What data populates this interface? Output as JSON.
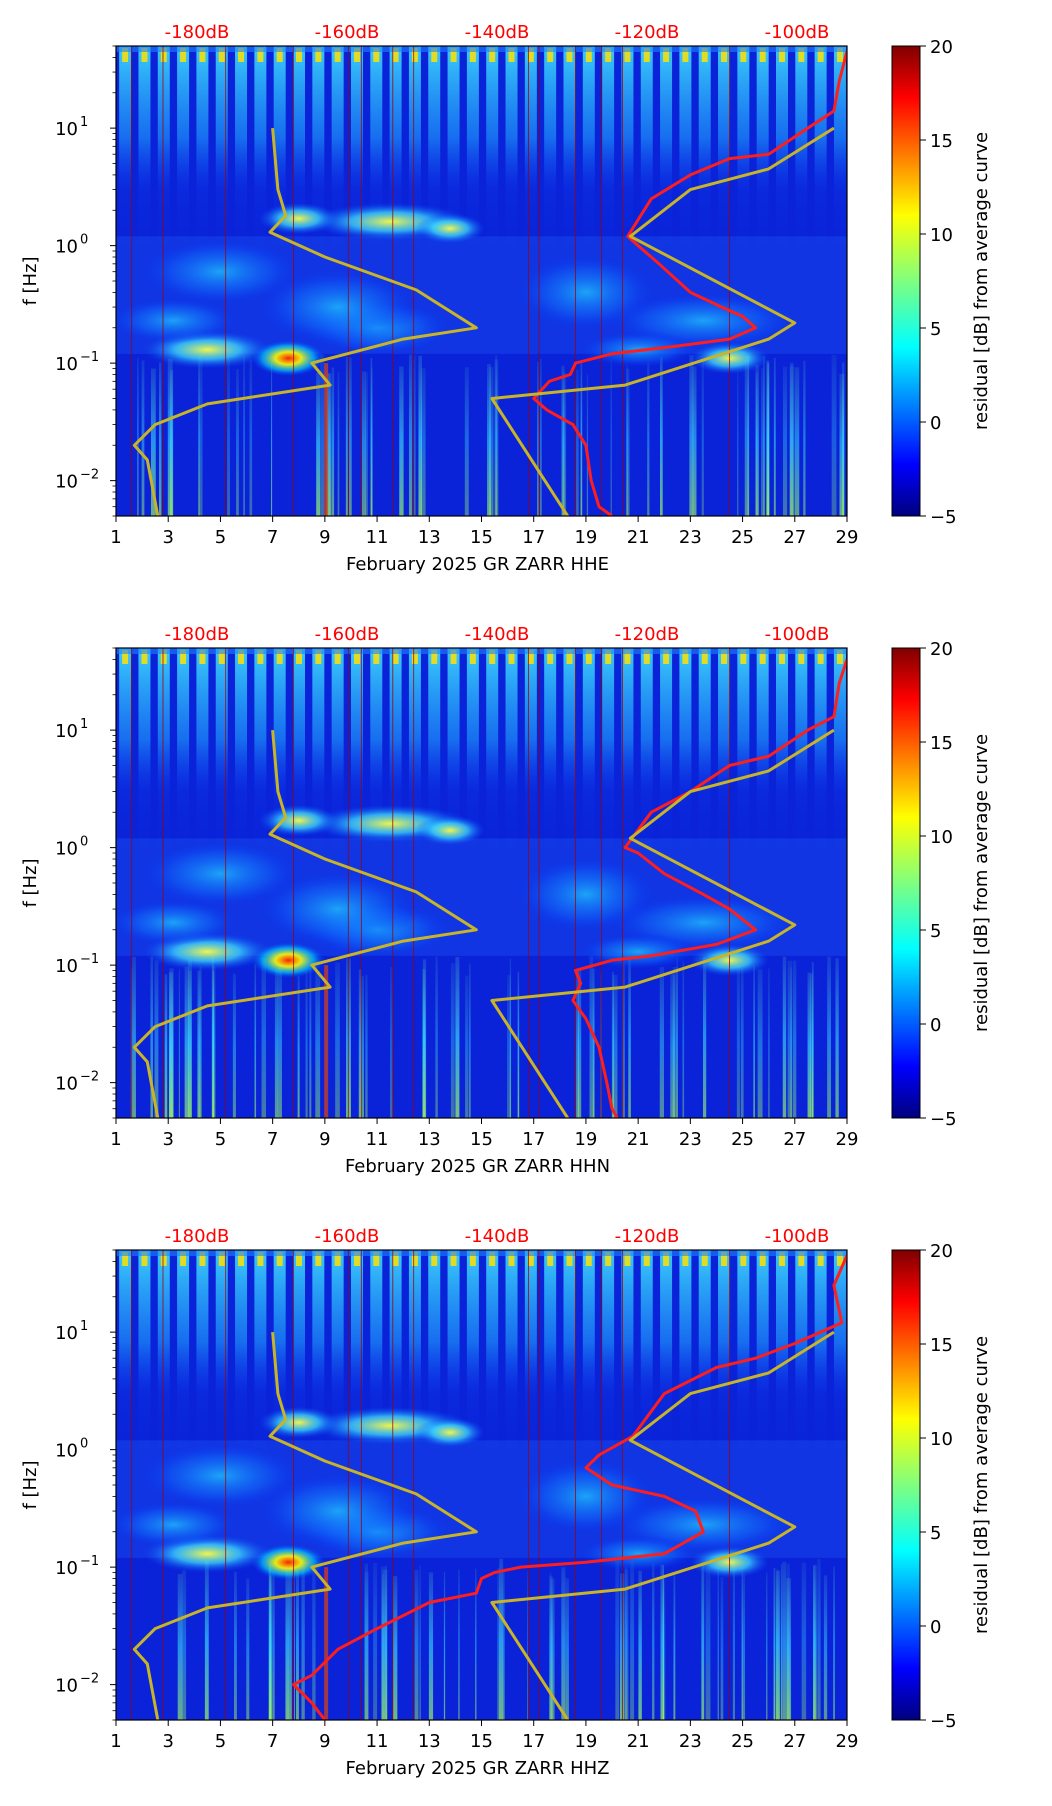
{
  "chart_data": [
    {
      "type": "heatmap",
      "title": "February 2025 GR ZARR  HHE",
      "xlabel": "February 2025 GR ZARR  HHE",
      "ylabel": "f [Hz]",
      "yscale": "log",
      "xlim": [
        1,
        29
      ],
      "ylim": [
        0.005,
        50
      ],
      "x_ticks": [
        "1",
        "3",
        "5",
        "7",
        "9",
        "11",
        "13",
        "15",
        "17",
        "19",
        "21",
        "23",
        "25",
        "27",
        "29"
      ],
      "y_ticks": [
        {
          "value": 0.01,
          "base": "10",
          "exp": "−2"
        },
        {
          "value": 0.1,
          "base": "10",
          "exp": "−1"
        },
        {
          "value": 1,
          "base": "10",
          "exp": "0"
        },
        {
          "value": 10,
          "base": "10",
          "exp": "1"
        }
      ],
      "top_labels": [
        "-180dB",
        "-160dB",
        "-140dB",
        "-120dB",
        "-100dB"
      ],
      "colorbar": {
        "label": "residual [dB] from average curve",
        "min": -5,
        "max": 20,
        "ticks": [
          "−5",
          "0",
          "5",
          "10",
          "15",
          "20"
        ]
      },
      "series": [
        {
          "name": "average PSD curve",
          "color": "#ff1e1e",
          "points": [
            [
              29,
              45
            ],
            [
              28.7,
              25
            ],
            [
              28.5,
              14
            ],
            [
              27.5,
              10
            ],
            [
              26,
              6
            ],
            [
              24.5,
              5.5
            ],
            [
              23,
              4
            ],
            [
              21.5,
              2.5
            ],
            [
              20.6,
              1.2
            ],
            [
              21,
              1.0
            ],
            [
              21.8,
              0.7
            ],
            [
              23,
              0.4
            ],
            [
              24.2,
              0.3
            ],
            [
              25,
              0.25
            ],
            [
              25.5,
              0.2
            ],
            [
              24.5,
              0.16
            ],
            [
              22.5,
              0.14
            ],
            [
              20,
              0.12
            ],
            [
              18.6,
              0.1
            ],
            [
              18.4,
              0.08
            ],
            [
              17.6,
              0.07
            ],
            [
              17,
              0.05
            ],
            [
              17.5,
              0.04
            ],
            [
              18.5,
              0.03
            ],
            [
              19,
              0.02
            ],
            [
              19.2,
              0.01
            ],
            [
              19.5,
              0.006
            ],
            [
              20,
              0.005
            ]
          ]
        },
        {
          "name": "noise model curve",
          "color": "#c8b428",
          "points": [
            [
              7,
              10
            ],
            [
              7.2,
              3
            ],
            [
              7.5,
              1.8
            ],
            [
              6.9,
              1.3
            ],
            [
              9,
              0.8
            ],
            [
              12.5,
              0.42
            ],
            [
              14.8,
              0.2
            ],
            [
              12,
              0.16
            ],
            [
              8.5,
              0.1
            ],
            [
              9.2,
              0.065
            ],
            [
              4.5,
              0.045
            ],
            [
              2.5,
              0.03
            ],
            [
              1.7,
              0.02
            ],
            [
              2.2,
              0.015
            ],
            [
              2.6,
              0.005
            ]
          ]
        },
        {
          "name": "noise model curve",
          "color": "#c8b428",
          "points": [
            [
              18.3,
              0.005
            ],
            [
              15.4,
              0.05
            ],
            [
              20.5,
              0.065
            ],
            [
              26,
              0.16
            ],
            [
              27,
              0.22
            ],
            [
              20.7,
              1.2
            ],
            [
              23,
              3
            ],
            [
              26,
              4.5
            ],
            [
              28.5,
              10
            ]
          ]
        }
      ]
    },
    {
      "type": "heatmap",
      "title": "February 2025 GR ZARR  HHN",
      "xlabel": "February 2025 GR ZARR  HHN",
      "ylabel": "f [Hz]",
      "yscale": "log",
      "xlim": [
        1,
        29
      ],
      "ylim": [
        0.005,
        50
      ],
      "x_ticks": [
        "1",
        "3",
        "5",
        "7",
        "9",
        "11",
        "13",
        "15",
        "17",
        "19",
        "21",
        "23",
        "25",
        "27",
        "29"
      ],
      "y_ticks": [
        {
          "value": 0.01,
          "base": "10",
          "exp": "−2"
        },
        {
          "value": 0.1,
          "base": "10",
          "exp": "−1"
        },
        {
          "value": 1,
          "base": "10",
          "exp": "0"
        },
        {
          "value": 10,
          "base": "10",
          "exp": "1"
        }
      ],
      "top_labels": [
        "-180dB",
        "-160dB",
        "-140dB",
        "-120dB",
        "-100dB"
      ],
      "colorbar": {
        "label": "residual [dB] from average curve",
        "min": -5,
        "max": 20,
        "ticks": [
          "−5",
          "0",
          "5",
          "10",
          "15",
          "20"
        ]
      },
      "series": [
        {
          "name": "average PSD curve",
          "color": "#ff1e1e",
          "points": [
            [
              29,
              40
            ],
            [
              28.7,
              25
            ],
            [
              28.5,
              13
            ],
            [
              27.5,
              10
            ],
            [
              26,
              6
            ],
            [
              24.5,
              5
            ],
            [
              23,
              3
            ],
            [
              21.5,
              2
            ],
            [
              20.5,
              1.0
            ],
            [
              21,
              0.9
            ],
            [
              22,
              0.6
            ],
            [
              23.5,
              0.4
            ],
            [
              24.5,
              0.3
            ],
            [
              25.5,
              0.2
            ],
            [
              24,
              0.15
            ],
            [
              21.5,
              0.12
            ],
            [
              20,
              0.11
            ],
            [
              18.6,
              0.09
            ],
            [
              18.8,
              0.07
            ],
            [
              18.5,
              0.05
            ],
            [
              19,
              0.035
            ],
            [
              19.5,
              0.02
            ],
            [
              19.8,
              0.01
            ],
            [
              20,
              0.006
            ],
            [
              20.2,
              0.005
            ]
          ]
        },
        {
          "name": "noise model curve",
          "color": "#c8b428",
          "points": [
            [
              7,
              10
            ],
            [
              7.2,
              3
            ],
            [
              7.5,
              1.8
            ],
            [
              6.9,
              1.3
            ],
            [
              9,
              0.8
            ],
            [
              12.5,
              0.42
            ],
            [
              14.8,
              0.2
            ],
            [
              12,
              0.16
            ],
            [
              8.5,
              0.1
            ],
            [
              9.2,
              0.065
            ],
            [
              4.5,
              0.045
            ],
            [
              2.5,
              0.03
            ],
            [
              1.7,
              0.02
            ],
            [
              2.2,
              0.015
            ],
            [
              2.6,
              0.005
            ]
          ]
        },
        {
          "name": "noise model curve",
          "color": "#c8b428",
          "points": [
            [
              18.3,
              0.005
            ],
            [
              15.4,
              0.05
            ],
            [
              20.5,
              0.065
            ],
            [
              26,
              0.16
            ],
            [
              27,
              0.22
            ],
            [
              20.7,
              1.2
            ],
            [
              23,
              3
            ],
            [
              26,
              4.5
            ],
            [
              28.5,
              10
            ]
          ]
        }
      ]
    },
    {
      "type": "heatmap",
      "title": "February 2025 GR ZARR  HHZ",
      "xlabel": "February 2025 GR ZARR  HHZ",
      "ylabel": "f [Hz]",
      "yscale": "log",
      "xlim": [
        1,
        29
      ],
      "ylim": [
        0.005,
        50
      ],
      "x_ticks": [
        "1",
        "3",
        "5",
        "7",
        "9",
        "11",
        "13",
        "15",
        "17",
        "19",
        "21",
        "23",
        "25",
        "27",
        "29"
      ],
      "y_ticks": [
        {
          "value": 0.01,
          "base": "10",
          "exp": "−2"
        },
        {
          "value": 0.1,
          "base": "10",
          "exp": "−1"
        },
        {
          "value": 1,
          "base": "10",
          "exp": "0"
        },
        {
          "value": 10,
          "base": "10",
          "exp": "1"
        }
      ],
      "top_labels": [
        "-180dB",
        "-160dB",
        "-140dB",
        "-120dB",
        "-100dB"
      ],
      "colorbar": {
        "label": "residual [dB] from average curve",
        "min": -5,
        "max": 20,
        "ticks": [
          "−5",
          "0",
          "5",
          "10",
          "15",
          "20"
        ]
      },
      "series": [
        {
          "name": "average PSD curve",
          "color": "#ff1e1e",
          "points": [
            [
              29,
              45
            ],
            [
              28.5,
              25
            ],
            [
              28.8,
              12
            ],
            [
              27,
              8
            ],
            [
              25.5,
              6
            ],
            [
              24,
              5
            ],
            [
              22,
              3
            ],
            [
              20.8,
              1.3
            ],
            [
              19.5,
              0.9
            ],
            [
              19,
              0.7
            ],
            [
              20,
              0.5
            ],
            [
              22,
              0.4
            ],
            [
              23.2,
              0.3
            ],
            [
              23.5,
              0.2
            ],
            [
              22,
              0.13
            ],
            [
              19,
              0.11
            ],
            [
              16.5,
              0.1
            ],
            [
              15.5,
              0.09
            ],
            [
              15,
              0.08
            ],
            [
              14.8,
              0.06
            ],
            [
              13,
              0.05
            ],
            [
              11,
              0.03
            ],
            [
              9.5,
              0.02
            ],
            [
              8.5,
              0.012
            ],
            [
              7.8,
              0.01
            ],
            [
              8.5,
              0.007
            ],
            [
              9,
              0.005
            ]
          ]
        },
        {
          "name": "noise model curve",
          "color": "#c8b428",
          "points": [
            [
              7,
              10
            ],
            [
              7.2,
              3
            ],
            [
              7.5,
              1.8
            ],
            [
              6.9,
              1.3
            ],
            [
              9,
              0.8
            ],
            [
              12.5,
              0.42
            ],
            [
              14.8,
              0.2
            ],
            [
              12,
              0.16
            ],
            [
              8.5,
              0.1
            ],
            [
              9.2,
              0.065
            ],
            [
              4.5,
              0.045
            ],
            [
              2.5,
              0.03
            ],
            [
              1.7,
              0.02
            ],
            [
              2.2,
              0.015
            ],
            [
              2.6,
              0.005
            ]
          ]
        },
        {
          "name": "noise model curve",
          "color": "#c8b428",
          "points": [
            [
              18.3,
              0.005
            ],
            [
              15.4,
              0.05
            ],
            [
              20.5,
              0.065
            ],
            [
              26,
              0.16
            ],
            [
              27,
              0.22
            ],
            [
              20.7,
              1.2
            ],
            [
              23,
              3
            ],
            [
              26,
              4.5
            ],
            [
              28.5,
              10
            ]
          ]
        }
      ]
    }
  ]
}
